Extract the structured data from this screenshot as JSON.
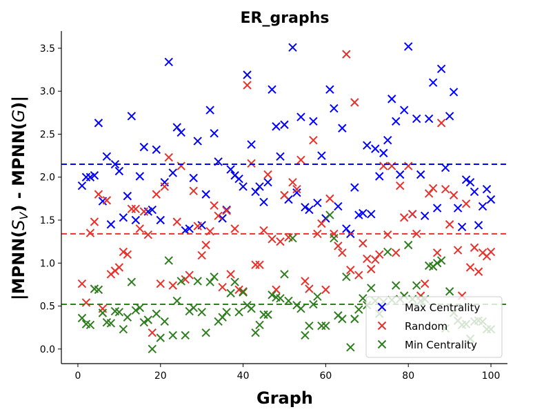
{
  "chart_data": {
    "type": "scatter",
    "title": "ER_graphs",
    "xlabel": "Graph",
    "ylabel": "|MPNN(S_V) - MPNN(G)|",
    "ylabel_parts": [
      "|MPNN(",
      "S",
      "V",
      ") - MPNN(",
      "G",
      ")|"
    ],
    "xlim": [
      -4,
      104
    ],
    "ylim": [
      -0.17,
      3.7
    ],
    "x_ticks": [
      0,
      20,
      40,
      60,
      80,
      100
    ],
    "x_tick_labels": [
      "0",
      "20",
      "40",
      "60",
      "80",
      "100"
    ],
    "y_ticks": [
      0.0,
      0.5,
      1.0,
      1.5,
      2.0,
      2.5,
      3.0,
      3.5
    ],
    "y_tick_labels": [
      "0.0",
      "0.5",
      "1.0",
      "1.5",
      "2.0",
      "2.5",
      "3.0",
      "3.5"
    ],
    "grid": false,
    "legend_position": "lower-right",
    "series": [
      {
        "name": "Max Centrality",
        "color": "#0000ff",
        "mean": 2.15,
        "x": [
          1,
          2,
          3,
          4,
          5,
          6,
          7,
          8,
          9,
          10,
          11,
          12,
          13,
          14,
          15,
          16,
          17,
          18,
          19,
          20,
          21,
          22,
          23,
          24,
          25,
          26,
          27,
          28,
          29,
          30,
          31,
          32,
          33,
          34,
          35,
          36,
          37,
          38,
          39,
          40,
          41,
          42,
          43,
          44,
          45,
          46,
          47,
          48,
          49,
          50,
          51,
          52,
          53,
          54,
          55,
          56,
          57,
          58,
          59,
          60,
          61,
          62,
          63,
          64,
          65,
          66,
          67,
          68,
          69,
          70,
          71,
          72,
          73,
          74,
          75,
          76,
          77,
          78,
          79,
          80,
          81,
          82,
          83,
          84,
          85,
          86,
          87,
          88,
          89,
          90,
          91,
          92,
          93,
          94,
          95,
          96,
          97,
          98,
          99,
          100
        ],
        "y": [
          1.9,
          2.0,
          2.0,
          2.02,
          2.63,
          1.72,
          2.24,
          1.45,
          2.15,
          2.07,
          1.53,
          1.78,
          2.71,
          1.5,
          2.01,
          2.35,
          1.6,
          1.62,
          2.32,
          1.5,
          1.94,
          3.34,
          2.05,
          2.58,
          2.52,
          1.38,
          1.4,
          1.99,
          2.42,
          1.44,
          1.8,
          2.78,
          2.51,
          2.18,
          1.52,
          1.62,
          2.09,
          2.02,
          1.98,
          1.89,
          3.19,
          2.38,
          1.83,
          1.89,
          1.71,
          1.94,
          3.02,
          2.59,
          2.24,
          2.61,
          1.74,
          3.51,
          1.82,
          2.7,
          1.65,
          1.62,
          2.65,
          1.7,
          2.25,
          1.52,
          3.02,
          2.8,
          1.66,
          2.57,
          1.4,
          1.34,
          1.88,
          1.56,
          1.58,
          2.37,
          1.57,
          2.33,
          2.01,
          2.28,
          2.43,
          2.91,
          2.65,
          2.03,
          2.78,
          3.52,
          1.57,
          2.68,
          2.03,
          1.55,
          2.68,
          3.1,
          1.64,
          3.26,
          2.11,
          2.71,
          2.99,
          1.64,
          1.42,
          1.97,
          1.94,
          1.83,
          1.44,
          1.66,
          1.86,
          1.74
        ]
      },
      {
        "name": "Random",
        "color": "#e8312a",
        "mean": 1.34,
        "x": [
          1,
          2,
          3,
          4,
          5,
          6,
          7,
          8,
          9,
          10,
          11,
          12,
          13,
          14,
          15,
          16,
          17,
          18,
          19,
          20,
          21,
          22,
          23,
          24,
          25,
          26,
          27,
          28,
          29,
          30,
          31,
          32,
          33,
          34,
          35,
          36,
          37,
          38,
          39,
          40,
          41,
          42,
          43,
          44,
          45,
          46,
          47,
          48,
          49,
          50,
          51,
          52,
          53,
          54,
          55,
          56,
          57,
          58,
          59,
          60,
          61,
          62,
          63,
          64,
          65,
          66,
          67,
          68,
          69,
          70,
          71,
          72,
          73,
          74,
          75,
          76,
          77,
          78,
          79,
          80,
          81,
          82,
          83,
          84,
          85,
          86,
          87,
          88,
          89,
          90,
          91,
          92,
          93,
          94,
          95,
          96,
          97,
          98,
          99,
          100
        ],
        "y": [
          0.76,
          0.54,
          1.35,
          1.48,
          1.8,
          0.47,
          1.73,
          0.87,
          0.91,
          0.95,
          1.13,
          1.1,
          1.63,
          1.63,
          1.4,
          1.6,
          1.33,
          0.19,
          1.8,
          0.76,
          1.89,
          2.23,
          0.74,
          1.48,
          2.13,
          0.81,
          0.86,
          1.84,
          1.43,
          1.09,
          1.21,
          1.37,
          1.67,
          1.55,
          0.72,
          1.61,
          0.87,
          1.4,
          0.69,
          0.67,
          3.07,
          2.16,
          0.98,
          0.98,
          1.38,
          2.03,
          1.28,
          0.69,
          1.25,
          1.79,
          1.3,
          1.94,
          1.86,
          2.2,
          0.79,
          0.7,
          2.43,
          1.34,
          1.46,
          0.69,
          1.75,
          1.34,
          1.2,
          1.12,
          3.43,
          0.92,
          2.87,
          0.86,
          1.23,
          1.05,
          0.93,
          1.04,
          1.1,
          2.13,
          1.33,
          2.13,
          1.12,
          1.9,
          1.53,
          2.13,
          1.57,
          1.34,
          0.62,
          0.76,
          1.81,
          1.87,
          1.12,
          2.63,
          1.86,
          1.45,
          1.79,
          1.15,
          0.62,
          1.69,
          0.95,
          1.18,
          0.9,
          1.12,
          1.08,
          1.13
        ]
      },
      {
        "name": "Min Centrality",
        "color": "#2e7d1e",
        "mean": 0.52,
        "x": [
          1,
          2,
          3,
          4,
          5,
          6,
          7,
          8,
          9,
          10,
          11,
          12,
          13,
          14,
          15,
          16,
          17,
          18,
          19,
          20,
          21,
          22,
          23,
          24,
          25,
          26,
          27,
          28,
          29,
          30,
          31,
          32,
          33,
          34,
          35,
          36,
          37,
          38,
          39,
          40,
          41,
          42,
          43,
          44,
          45,
          46,
          47,
          48,
          49,
          50,
          51,
          52,
          53,
          54,
          55,
          56,
          57,
          58,
          59,
          60,
          61,
          62,
          63,
          64,
          65,
          66,
          67,
          68,
          69,
          70,
          71,
          72,
          73,
          74,
          75,
          76,
          77,
          78,
          79,
          80,
          81,
          82,
          83,
          84,
          85,
          86,
          87,
          88,
          89,
          90,
          91,
          92,
          93,
          94,
          95,
          96,
          97,
          98,
          99,
          100
        ],
        "y": [
          0.36,
          0.29,
          0.28,
          0.7,
          0.69,
          0.42,
          0.31,
          0.3,
          0.44,
          0.43,
          0.23,
          0.37,
          0.78,
          0.45,
          0.48,
          0.31,
          0.34,
          0.0,
          0.41,
          0.13,
          0.32,
          1.03,
          0.16,
          0.56,
          0.79,
          0.16,
          0.44,
          0.48,
          0.79,
          0.43,
          0.19,
          0.78,
          0.84,
          0.32,
          0.37,
          0.43,
          0.65,
          0.78,
          0.43,
          0.66,
          0.51,
          0.47,
          0.19,
          0.28,
          0.4,
          0.4,
          0.63,
          0.6,
          0.59,
          0.87,
          0.56,
          1.29,
          0.51,
          0.47,
          0.16,
          0.27,
          0.52,
          0.61,
          0.27,
          0.27,
          1.56,
          1.29,
          0.39,
          0.35,
          0.84,
          0.02,
          0.35,
          0.46,
          0.59,
          0.51,
          0.71,
          0.56,
          0.41,
          0.55,
          1.13,
          0.57,
          0.74,
          0.58,
          0.62,
          1.21,
          0.58,
          0.74,
          0.56,
          0.58,
          0.97,
          0.96,
          1.0,
          1.03,
          0.24,
          0.67,
          0.42,
          0.33,
          0.28,
          0.29,
          0.12,
          0.32,
          0.33,
          0.32,
          0.23,
          0.23
        ]
      }
    ]
  }
}
